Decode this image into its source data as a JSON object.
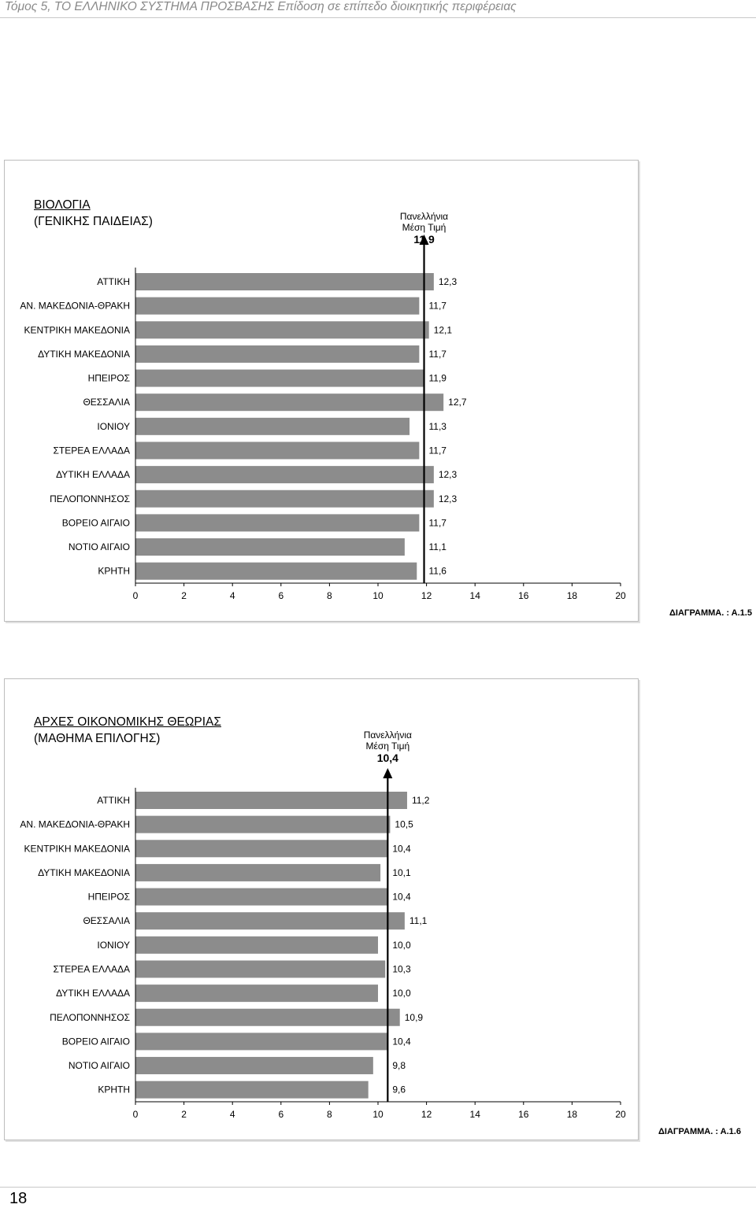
{
  "header": {
    "text": "Τόμος 5, ΤΟ ΕΛΛΗΝΙΚΟ ΣΥΣΤΗΜΑ ΠΡΟΣΒΑΣΗΣ Επίδοση σε επίπεδο διοικητικής περιφέρειας"
  },
  "footer": {
    "page_number": "18"
  },
  "chart_data": [
    {
      "type": "bar",
      "orientation": "horizontal",
      "title_line1": "ΒΙΟΛΟΓΙΑ",
      "title_line2": "(ΓΕΝΙΚΗΣ ΠΑΙΔΕΙΑΣ)",
      "reference": {
        "label_line1": "Πανελλήνια",
        "label_line2": "Μέση Τιμή",
        "value": 11.9,
        "value_label": "11,9"
      },
      "categories": [
        "ΑΤΤΙΚΗ",
        "ΑΝ. ΜΑΚΕΔΟΝΙΑ-ΘΡΑΚΗ",
        "ΚΕΝΤΡΙΚΗ ΜΑΚΕΔΟΝΙΑ",
        "ΔΥΤΙΚΗ ΜΑΚΕΔΟΝΙΑ",
        "ΗΠΕΙΡΟΣ",
        "ΘΕΣΣΑΛΙΑ",
        "ΙΟΝΙΟΥ",
        "ΣΤΕΡΕΑ ΕΛΛΑΔΑ",
        "ΔΥΤΙΚΗ ΕΛΛΑΔΑ",
        "ΠΕΛΟΠΟΝΝΗΣΟΣ",
        "ΒΟΡΕΙΟ ΑΙΓΑΙΟ",
        "ΝΟΤΙΟ ΑΙΓΑΙΟ",
        "ΚΡΗΤΗ"
      ],
      "values": [
        12.3,
        11.7,
        12.1,
        11.7,
        11.9,
        12.7,
        11.3,
        11.7,
        12.3,
        12.3,
        11.7,
        11.1,
        11.6
      ],
      "value_labels": [
        "12,3",
        "11,7",
        "12,1",
        "11,7",
        "11,9",
        "12,7",
        "11,3",
        "11,7",
        "12,3",
        "12,3",
        "11,7",
        "11,1",
        "11,6"
      ],
      "xlim": [
        0,
        20
      ],
      "xticks": [
        0,
        2,
        4,
        6,
        8,
        10,
        12,
        14,
        16,
        18,
        20
      ],
      "bar_color": "#8c8c8c",
      "diagram_id": "ΔΙΑΓΡΑΜΜΑ. : Α.1.5"
    },
    {
      "type": "bar",
      "orientation": "horizontal",
      "title_line1": "ΑΡΧΕΣ ΟΙΚΟΝΟΜΙΚΗΣ ΘΕΩΡΙΑΣ",
      "title_line2": "(ΜΑΘΗΜΑ ΕΠΙΛΟΓΗΣ)",
      "reference": {
        "label_line1": "Πανελλήνια",
        "label_line2": "Μέση Τιμή",
        "value": 10.4,
        "value_label": "10,4"
      },
      "categories": [
        "ΑΤΤΙΚΗ",
        "ΑΝ. ΜΑΚΕΔΟΝΙΑ-ΘΡΑΚΗ",
        "ΚΕΝΤΡΙΚΗ ΜΑΚΕΔΟΝΙΑ",
        "ΔΥΤΙΚΗ ΜΑΚΕΔΟΝΙΑ",
        "ΗΠΕΙΡΟΣ",
        "ΘΕΣΣΑΛΙΑ",
        "ΙΟΝΙΟΥ",
        "ΣΤΕΡΕΑ ΕΛΛΑΔΑ",
        "ΔΥΤΙΚΗ ΕΛΛΑΔΑ",
        "ΠΕΛΟΠΟΝΝΗΣΟΣ",
        "ΒΟΡΕΙΟ ΑΙΓΑΙΟ",
        "ΝΟΤΙΟ ΑΙΓΑΙΟ",
        "ΚΡΗΤΗ"
      ],
      "values": [
        11.2,
        10.5,
        10.4,
        10.1,
        10.4,
        11.1,
        10.0,
        10.3,
        10.0,
        10.9,
        10.4,
        9.8,
        9.6
      ],
      "value_labels": [
        "11,2",
        "10,5",
        "10,4",
        "10,1",
        "10,4",
        "11,1",
        "10,0",
        "10,3",
        "10,0",
        "10,9",
        "10,4",
        "9,8",
        "9,6"
      ],
      "xlim": [
        0,
        20
      ],
      "xticks": [
        0,
        2,
        4,
        6,
        8,
        10,
        12,
        14,
        16,
        18,
        20
      ],
      "bar_color": "#8c8c8c",
      "diagram_id": "ΔΙΑΓΡΑΜΜΑ. : Α.1.6"
    }
  ]
}
